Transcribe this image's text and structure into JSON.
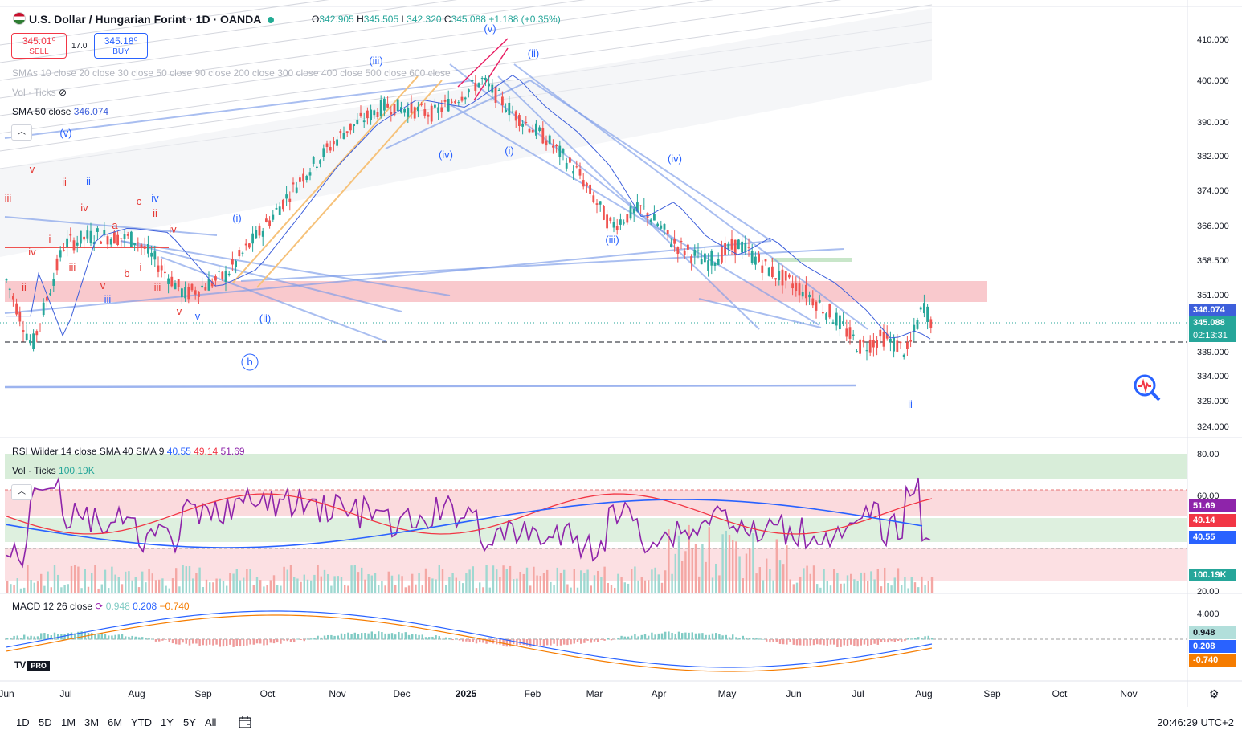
{
  "header": {
    "symbol_title": "U.S. Dollar / Hungarian Forint · 1D · OANDA",
    "ohlc": {
      "o_label": "O",
      "o": "342.905",
      "h_label": "H",
      "h": "345.505",
      "l_label": "L",
      "l": "342.320",
      "c_label": "C",
      "c": "345.088",
      "change": "+1.188 (+0.35%)"
    }
  },
  "trade": {
    "sell_price": "345.01⁰",
    "sell_label": "SELL",
    "spread": "17.0",
    "buy_price": "345.18⁰",
    "buy_label": "BUY"
  },
  "indicators": {
    "smas": "SMAs 10 close 20 close 30 close 50 close 90 close 200 close 300 close 400 close 500 close 600 close",
    "vol_ticks": "Vol · Ticks",
    "sma50_label": "SMA 50 close",
    "sma50_value": "346.074",
    "rsi_label": "RSI Wilder 14 close SMA 40 SMA 9",
    "rsi_values": [
      "40.55",
      "49.14",
      "51.69"
    ],
    "vol_label": "Vol · Ticks",
    "vol_value": "100.19K",
    "macd_label": "MACD 12 26 close",
    "macd_values": [
      "0.948",
      "0.208",
      "−0.740"
    ]
  },
  "price_axis": {
    "main_ticks": [
      "410.000",
      "400.000",
      "390.000",
      "382.000",
      "374.000",
      "366.000",
      "358.500",
      "351.000",
      "339.000",
      "334.000",
      "329.000",
      "324.000"
    ],
    "rsi_ticks": [
      "80.00",
      "60.00",
      "20.00"
    ],
    "macd_ticks": [
      "4.000"
    ],
    "tags": {
      "sma50": "346.074",
      "last": "345.088",
      "countdown": "02:13:31",
      "rsi_a": "51.69",
      "rsi_b": "49.14",
      "rsi_c": "40.55",
      "vol": "100.19K",
      "macd_a": "0.948",
      "macd_b": "0.208",
      "macd_c": "-0.740"
    }
  },
  "time_axis": [
    "Jun",
    "Jul",
    "Aug",
    "Sep",
    "Oct",
    "Nov",
    "Dec",
    "2025",
    "Feb",
    "Mar",
    "Apr",
    "May",
    "Jun",
    "Jul",
    "Aug",
    "Sep",
    "Oct",
    "Nov"
  ],
  "wave_labels": [
    "(v)",
    "(iii)",
    "(ii)",
    "(iv)",
    "(i)",
    "(iv)",
    "(iii)",
    "(i)",
    "(ii)",
    "b",
    "(v)",
    "iii",
    "v",
    "ii",
    "ii",
    "iv",
    "i",
    "c",
    "iv",
    "ii",
    "a",
    "iv",
    "iii",
    "b",
    "i",
    "iii",
    "ii",
    "v",
    "iii",
    "v",
    "v",
    "iv",
    "ii"
  ],
  "bottom_bar": {
    "ranges": [
      "1D",
      "5D",
      "1M",
      "3M",
      "6M",
      "YTD",
      "1Y",
      "5Y",
      "All"
    ],
    "clock": "20:46:29 UTC+2"
  },
  "colors": {
    "up": "#26a69a",
    "down": "#ef5350",
    "accent": "#2962ff",
    "sma50": "#3d5fdb",
    "rsi": "#8e24aa",
    "pink_zone": "#f8bbc1",
    "green_zone": "#c8e6c9"
  },
  "logo_text": "TV",
  "logo_badge": "PRO"
}
